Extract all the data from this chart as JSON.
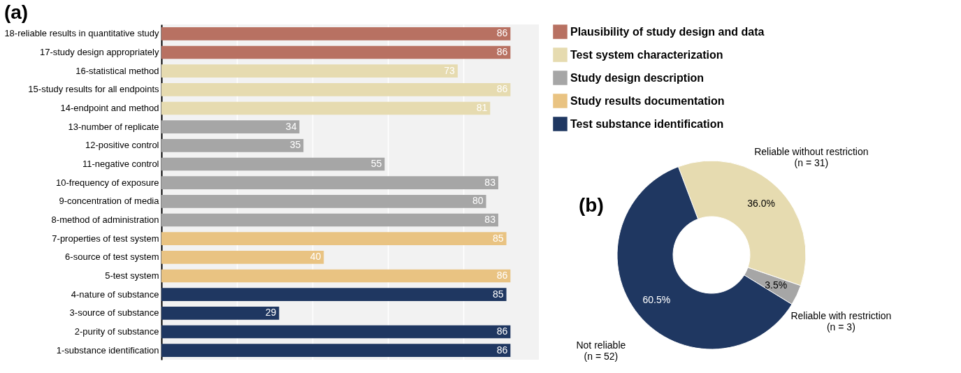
{
  "chart_data": [
    {
      "type": "bar",
      "title": "(a)",
      "orientation": "horizontal",
      "data_labels": true,
      "grid": "x",
      "legend": "right",
      "categories": [
        "18-reliable results in quantitative study",
        "17-study design appropriately",
        "16-statistical method",
        "15-study results for all endpoints",
        "14-endpoint and method",
        "13-number of replicate",
        "12-positive control",
        "11-negative control",
        "10-frequency of exposure",
        "9-concentration of media",
        "8-method of administration",
        "7-properties of test system",
        "6-source of test system",
        "5-test system",
        "4-nature of substance",
        "3-source  of substance",
        "2-purity of substance",
        "1-substance identification"
      ],
      "xlim": [
        0,
        93
      ],
      "xticks": [
        {
          "value": 18.6,
          "label": null
        },
        {
          "value": 37.2,
          "label": null
        },
        {
          "value": 55.8,
          "label": null
        },
        {
          "value": 74.4,
          "label": null
        }
      ],
      "series": [
        {
          "name": "Plausibility of study design and data",
          "color": "#b87162",
          "values": [
            86,
            86,
            null,
            null,
            null,
            null,
            null,
            null,
            null,
            null,
            null,
            null,
            null,
            null,
            null,
            null,
            null,
            null
          ]
        },
        {
          "name": "Test system characterization",
          "color": "#e6dbb0",
          "values": [
            null,
            null,
            73,
            86,
            81,
            null,
            null,
            null,
            null,
            null,
            null,
            null,
            null,
            null,
            null,
            null,
            null,
            null
          ]
        },
        {
          "name": "Study design description",
          "color": "#a6a6a6",
          "values": [
            null,
            null,
            null,
            null,
            null,
            34,
            35,
            55,
            83,
            80,
            83,
            null,
            null,
            null,
            null,
            null,
            null,
            null
          ]
        },
        {
          "name": "Study results documentation",
          "color": "#e9c382",
          "values": [
            null,
            null,
            null,
            null,
            null,
            null,
            null,
            null,
            null,
            null,
            null,
            85,
            40,
            86,
            null,
            null,
            null,
            null
          ]
        },
        {
          "name": "Test substance identification",
          "color": "#1f3761",
          "values": [
            null,
            null,
            null,
            null,
            null,
            null,
            null,
            null,
            null,
            null,
            null,
            null,
            null,
            null,
            85,
            29,
            86,
            86
          ]
        }
      ]
    },
    {
      "type": "donut",
      "title": "(b)",
      "categories": [
        "Reliable without restriction\n(n = 31)",
        "Reliable with restriction\n(n = 3)",
        "Not reliable\n(n = 52)"
      ],
      "values": [
        36.0,
        3.5,
        60.5
      ],
      "value_labels": [
        "36.0%",
        "3.5%",
        "60.5%"
      ],
      "colors": [
        "#e6dbb0",
        "#a6a6a6",
        "#1f3761"
      ]
    }
  ]
}
